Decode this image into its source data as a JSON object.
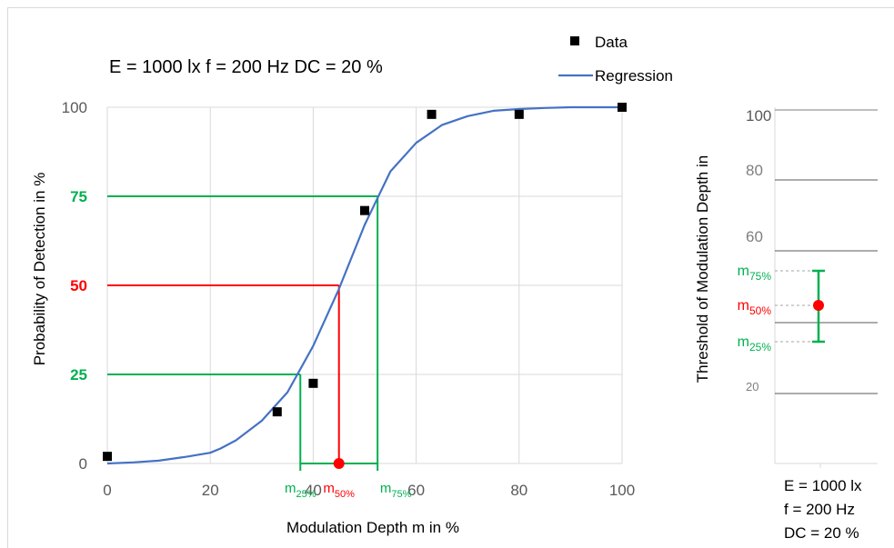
{
  "chart_data": [
    {
      "type": "scatter",
      "title": "E = 1000 lx    f = 200 Hz    DC = 20 %",
      "xlabel": "Modulation Depth m in %",
      "ylabel": "Probability of Detection in %",
      "xlim": [
        0,
        100
      ],
      "ylim": [
        0,
        100
      ],
      "x_ticks": [
        "0",
        "20",
        "40",
        "60",
        "80",
        "100"
      ],
      "y_ticks": [
        "0",
        "25",
        "50",
        "75",
        "100"
      ],
      "grid": true,
      "legend_position": "top-right",
      "series": [
        {
          "name": "Data",
          "kind": "points",
          "color": "#000000",
          "x": [
            0,
            33,
            40,
            50,
            63,
            80,
            100
          ],
          "y": [
            2,
            14.5,
            22.5,
            71,
            98,
            98,
            100
          ]
        },
        {
          "name": "Regression",
          "kind": "line",
          "color": "#4472c4",
          "x": [
            0,
            5,
            10,
            15,
            20,
            22,
            25,
            30,
            35,
            40,
            45,
            50,
            52,
            55,
            60,
            65,
            70,
            75,
            80,
            85,
            90,
            100
          ],
          "y": [
            0,
            0.3,
            0.8,
            1.8,
            3,
            4.2,
            6.5,
            12,
            20,
            33,
            49,
            67,
            73,
            82,
            90,
            95,
            97.5,
            99,
            99.5,
            99.8,
            100,
            100
          ]
        }
      ],
      "annotations": [
        {
          "label": "m",
          "sub": "25%",
          "x": 37.5,
          "y": 25,
          "color": "#00b050"
        },
        {
          "label": "m",
          "sub": "50%",
          "x": 45,
          "y": 50,
          "color": "#ff0000"
        },
        {
          "label": "m",
          "sub": "75%",
          "x": 52.5,
          "y": 75,
          "color": "#00b050"
        }
      ],
      "y_label_colors": {
        "25": "#00b050",
        "50": "#ff0000",
        "75": "#00b050"
      }
    },
    {
      "type": "scatter",
      "ylabel": "Threshold of Modulation Depth in",
      "y_ticks": [
        "100",
        "80",
        "60",
        "20"
      ],
      "caption": [
        "E = 1000 lx",
        "f = 200 Hz",
        "DC = 20 %"
      ],
      "annotations": [
        {
          "label": "m",
          "sub": "75%",
          "value": 52.5,
          "color": "#00b050"
        },
        {
          "label": "m",
          "sub": "50%",
          "value": 45,
          "color": "#ff0000"
        },
        {
          "label": "m",
          "sub": "25%",
          "value": 37.5,
          "color": "#00b050"
        }
      ]
    }
  ]
}
